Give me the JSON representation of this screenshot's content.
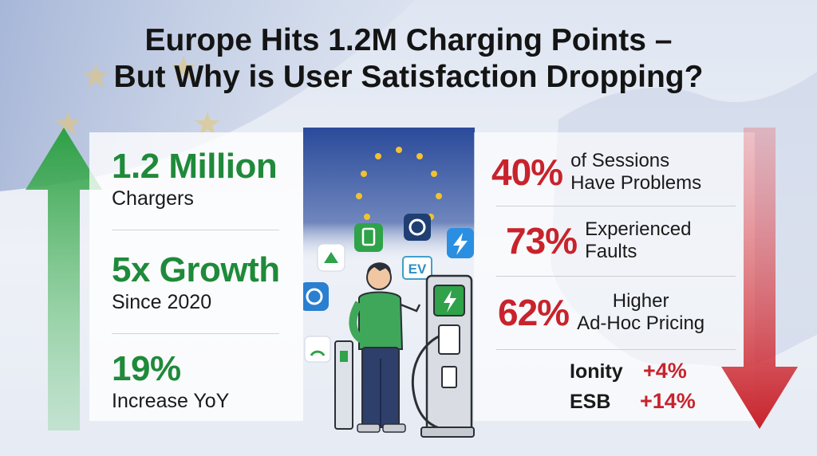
{
  "title": {
    "line1": "Europe Hits 1.2M Charging Points –",
    "line2": "But Why is User Satisfaction Dropping?"
  },
  "growth_stats": [
    {
      "value": "1.2 Million",
      "label": "Chargers"
    },
    {
      "value": "5x Growth",
      "label": "Since 2020"
    },
    {
      "value": "19%",
      "label": "Increase YoY"
    }
  ],
  "problem_stats": [
    {
      "value": "40%",
      "label_line1": "of Sessions",
      "label_line2": "Have Problems"
    },
    {
      "value": "73%",
      "label_line1": "Experienced",
      "label_line2": "Faults"
    },
    {
      "value": "62%",
      "label_line1": "Higher",
      "label_line2": "Ad-Hoc Pricing"
    }
  ],
  "operators": [
    {
      "name": "Ionity",
      "change": "+4%"
    },
    {
      "name": "ESB",
      "change": "+14%"
    }
  ],
  "illustration": {
    "ev_badge": "EV",
    "icons": [
      "app-icon-map",
      "app-icon-charger",
      "app-icon-refresh",
      "app-icon-bolt",
      "app-icon-sync",
      "app-icon-gauge"
    ]
  },
  "colors": {
    "growth": "#1f8a3a",
    "decline": "#c8232c",
    "eu_blue": "#2a4a9a",
    "eu_star": "#f2c230"
  }
}
